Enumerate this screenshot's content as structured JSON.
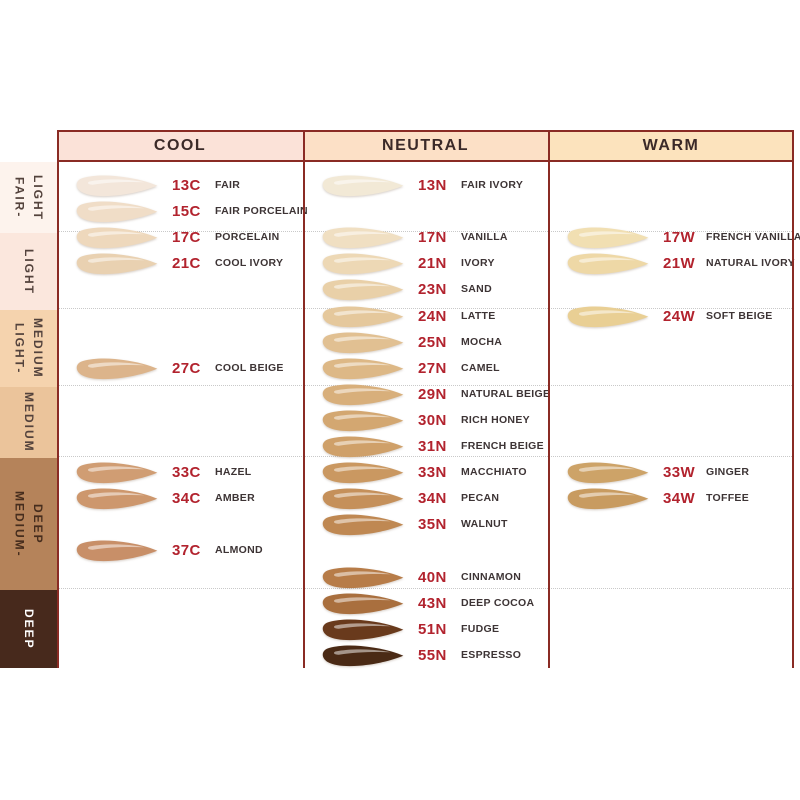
{
  "chart_data": {
    "type": "table",
    "column_headers": [
      "COOL",
      "NEUTRAL",
      "WARM"
    ],
    "row_headers": [
      "FAIR-LIGHT",
      "LIGHT",
      "LIGHT-MEDIUM",
      "MEDIUM",
      "MEDIUM-DEEP",
      "DEEP"
    ],
    "columns": [
      {
        "label": "COOL",
        "header_bg": "#fbe2d8",
        "entries": [
          {
            "code": "13C",
            "name": "FAIR",
            "color": "#f3e6da",
            "slot": 0
          },
          {
            "code": "15C",
            "name": "FAIR PORCELAIN",
            "color": "#f0ddc7",
            "slot": 1
          },
          {
            "code": "17C",
            "name": "PORCELAIN",
            "color": "#eed8bc",
            "slot": 2
          },
          {
            "code": "21C",
            "name": "COOL IVORY",
            "color": "#e9d1b1",
            "slot": 3
          },
          {
            "code": "27C",
            "name": "COOL BEIGE",
            "color": "#dcb48b",
            "slot": 7
          },
          {
            "code": "33C",
            "name": "HAZEL",
            "color": "#d09d73",
            "slot": 11
          },
          {
            "code": "34C",
            "name": "AMBER",
            "color": "#cd976d",
            "slot": 12
          },
          {
            "code": "37C",
            "name": "ALMOND",
            "color": "#c88f68",
            "slot": 14
          }
        ]
      },
      {
        "label": "NEUTRAL",
        "header_bg": "#fce0c6",
        "entries": [
          {
            "code": "13N",
            "name": "FAIR IVORY",
            "color": "#f2e9d6",
            "slot": 0
          },
          {
            "code": "17N",
            "name": "VANILLA",
            "color": "#f0dfc2",
            "slot": 2
          },
          {
            "code": "21N",
            "name": "IVORY",
            "color": "#edd8b5",
            "slot": 3
          },
          {
            "code": "23N",
            "name": "SAND",
            "color": "#e9d0a8",
            "slot": 4
          },
          {
            "code": "24N",
            "name": "LATTE",
            "color": "#e5c89c",
            "slot": 5
          },
          {
            "code": "25N",
            "name": "MOCHA",
            "color": "#e1c092",
            "slot": 6
          },
          {
            "code": "27N",
            "name": "CAMEL",
            "color": "#ddb886",
            "slot": 7
          },
          {
            "code": "29N",
            "name": "NATURAL BEIGE",
            "color": "#d8af7b",
            "slot": 8
          },
          {
            "code": "30N",
            "name": "RICH HONEY",
            "color": "#d3a771",
            "slot": 9
          },
          {
            "code": "31N",
            "name": "FRENCH BEIGE",
            "color": "#cfa069",
            "slot": 10
          },
          {
            "code": "33N",
            "name": "MACCHIATO",
            "color": "#ca9861",
            "slot": 11
          },
          {
            "code": "34N",
            "name": "PECAN",
            "color": "#c5905a",
            "slot": 12
          },
          {
            "code": "35N",
            "name": "WALNUT",
            "color": "#bf8852",
            "slot": 13
          },
          {
            "code": "40N",
            "name": "CINNAMON",
            "color": "#b77c48",
            "slot": 15
          },
          {
            "code": "43N",
            "name": "DEEP COCOA",
            "color": "#a96f3e",
            "slot": 16
          },
          {
            "code": "51N",
            "name": "FUDGE",
            "color": "#693a1c",
            "slot": 17
          },
          {
            "code": "55N",
            "name": "ESPRESSO",
            "color": "#4a2a15",
            "slot": 18
          }
        ]
      },
      {
        "label": "WARM",
        "header_bg": "#fce3bd",
        "entries": [
          {
            "code": "17W",
            "name": "FRENCH VANILLA",
            "color": "#f1dfb2",
            "slot": 2
          },
          {
            "code": "21W",
            "name": "NATURAL IVORY",
            "color": "#eed8a6",
            "slot": 3
          },
          {
            "code": "24W",
            "name": "SOFT BEIGE",
            "color": "#e9cf94",
            "slot": 5
          },
          {
            "code": "33W",
            "name": "GINGER",
            "color": "#cda368",
            "slot": 11
          },
          {
            "code": "34W",
            "name": "TOFFEE",
            "color": "#c89b60",
            "slot": 12
          }
        ]
      }
    ],
    "depth_bands": [
      {
        "label": "FAIR-\nLIGHT",
        "bg": "#fdf3ed",
        "text": "#53423c"
      },
      {
        "label": "LIGHT",
        "bg": "#fbe7dd",
        "text": "#53423c"
      },
      {
        "label": "LIGHT-\nMEDIUM",
        "bg": "#f5d3ae",
        "text": "#53423c"
      },
      {
        "label": "MEDIUM",
        "bg": "#ebc49b",
        "text": "#53423c"
      },
      {
        "label": "MEDIUM-\nDEEP",
        "bg": "#b5835a",
        "text": "#462d1d"
      },
      {
        "label": "DEEP",
        "bg": "#47291c",
        "text": "#ffffff"
      }
    ],
    "colors": {
      "border": "#8a2b24",
      "code": "#b2232e",
      "name": "#3d3435",
      "header_text": "#3b2a28",
      "dotted": "#c9c9c9"
    }
  }
}
